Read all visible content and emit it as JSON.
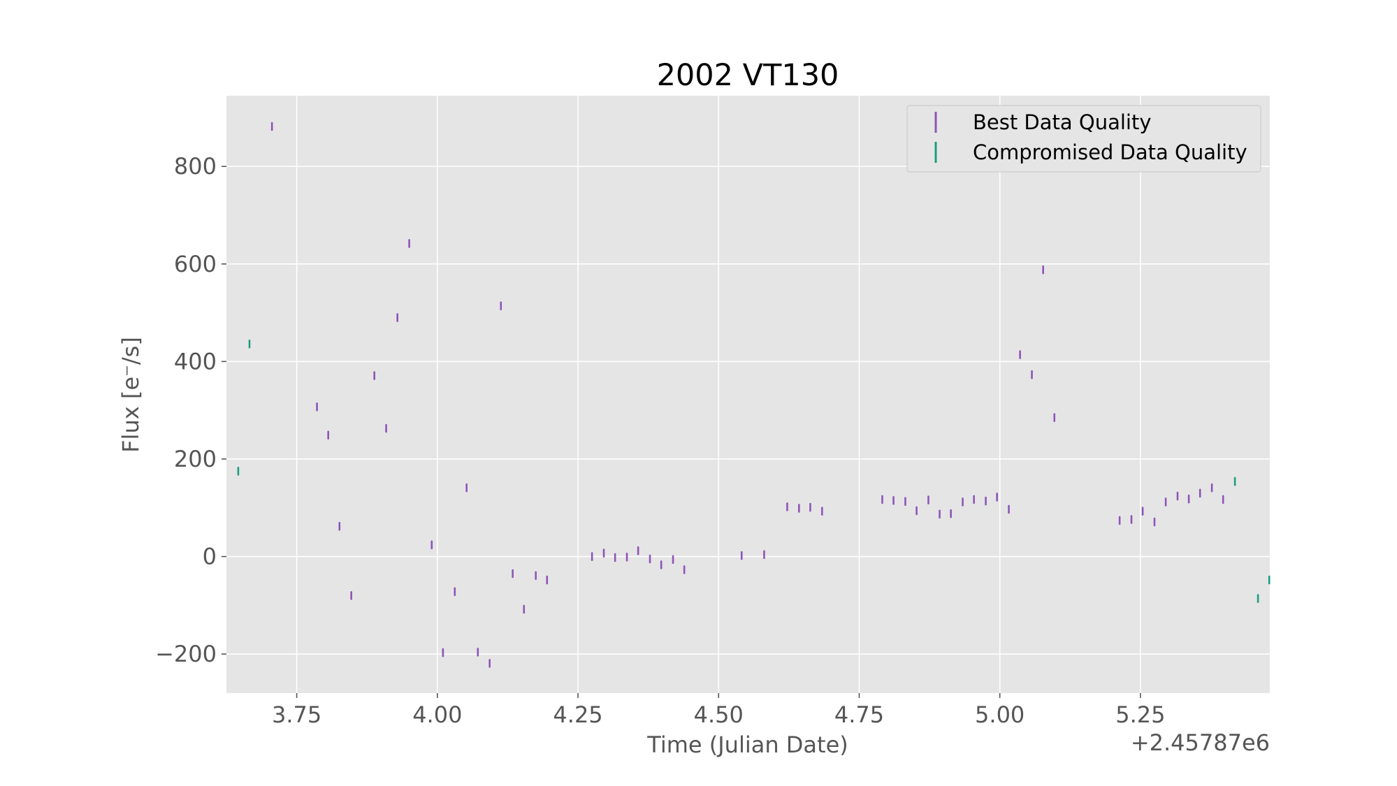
{
  "chart_data": {
    "type": "scatter",
    "title": "2002 VT130",
    "xlabel": "Time (Julian Date)",
    "ylabel": "Flux [e⁻/s]",
    "x_offset_label": "+2.45787e6",
    "xlim": [
      3.625,
      5.48
    ],
    "ylim": [
      -280,
      945
    ],
    "x_ticks": [
      3.75,
      4.0,
      4.25,
      4.5,
      4.75,
      5.0,
      5.25
    ],
    "x_tick_labels": [
      "3.75",
      "4.00",
      "4.25",
      "4.50",
      "4.75",
      "5.00",
      "5.25"
    ],
    "y_ticks": [
      -200,
      0,
      200,
      400,
      600,
      800
    ],
    "y_tick_labels": [
      "−200",
      "0",
      "200",
      "400",
      "600",
      "800"
    ],
    "grid": true,
    "legend_position": "top-right",
    "series": [
      {
        "name": "Best Data Quality",
        "color": "#8e55b8",
        "points": [
          [
            3.706,
            882
          ],
          [
            3.786,
            307
          ],
          [
            3.806,
            249
          ],
          [
            3.826,
            62
          ],
          [
            3.847,
            -80
          ],
          [
            3.888,
            371
          ],
          [
            3.909,
            263
          ],
          [
            3.929,
            490
          ],
          [
            3.95,
            642
          ],
          [
            3.99,
            24
          ],
          [
            4.01,
            -197
          ],
          [
            4.031,
            -72
          ],
          [
            4.052,
            141
          ],
          [
            4.072,
            -196
          ],
          [
            4.093,
            -219
          ],
          [
            4.113,
            514
          ],
          [
            4.134,
            -35
          ],
          [
            4.154,
            -108
          ],
          [
            4.175,
            -39
          ],
          [
            4.195,
            -48
          ],
          [
            4.275,
            0
          ],
          [
            4.296,
            7
          ],
          [
            4.316,
            -2
          ],
          [
            4.337,
            -1
          ],
          [
            4.357,
            12
          ],
          [
            4.378,
            -5
          ],
          [
            4.398,
            -17
          ],
          [
            4.419,
            -6
          ],
          [
            4.439,
            -27
          ],
          [
            4.541,
            2
          ],
          [
            4.581,
            4
          ],
          [
            4.622,
            102
          ],
          [
            4.643,
            99
          ],
          [
            4.663,
            101
          ],
          [
            4.684,
            93
          ],
          [
            4.791,
            117
          ],
          [
            4.811,
            115
          ],
          [
            4.832,
            113
          ],
          [
            4.852,
            94
          ],
          [
            4.873,
            116
          ],
          [
            4.893,
            87
          ],
          [
            4.913,
            88
          ],
          [
            4.934,
            112
          ],
          [
            4.954,
            117
          ],
          [
            4.975,
            114
          ],
          [
            4.995,
            122
          ],
          [
            5.016,
            97
          ],
          [
            5.036,
            414
          ],
          [
            5.057,
            373
          ],
          [
            5.077,
            588
          ],
          [
            5.097,
            285
          ],
          [
            5.213,
            74
          ],
          [
            5.234,
            76
          ],
          [
            5.254,
            93
          ],
          [
            5.275,
            71
          ],
          [
            5.295,
            112
          ],
          [
            5.316,
            124
          ],
          [
            5.336,
            118
          ],
          [
            5.356,
            130
          ],
          [
            5.377,
            141
          ],
          [
            5.397,
            117
          ]
        ]
      },
      {
        "name": "Compromised Data Quality",
        "color": "#1a9e80",
        "points": [
          [
            3.646,
            175
          ],
          [
            3.666,
            436
          ],
          [
            5.418,
            154
          ],
          [
            5.459,
            -86
          ],
          [
            5.479,
            -48
          ]
        ]
      }
    ]
  }
}
